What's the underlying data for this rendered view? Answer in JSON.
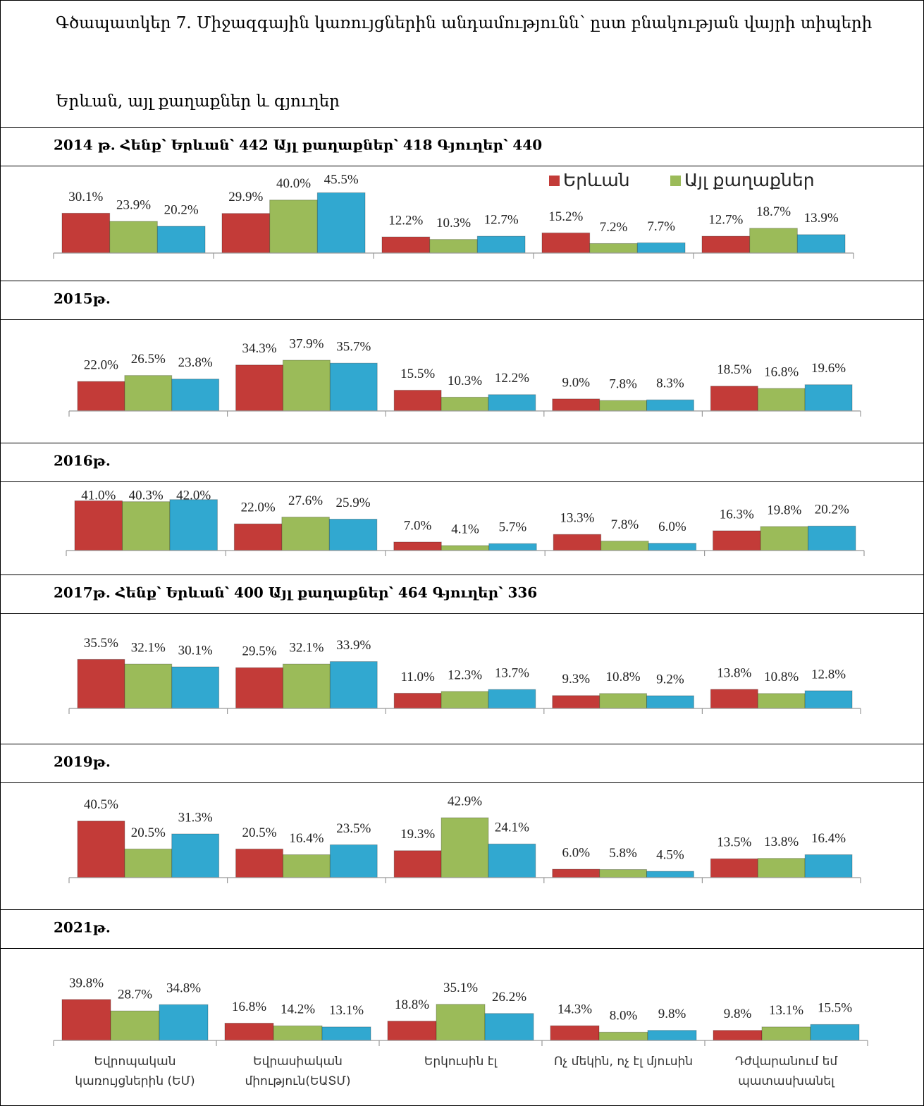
{
  "title": "Գծապատկեր 7. Միջազգային կառույցներին անդամությունն՝ ըստ բնակության վայրի տիպերի",
  "subtitle": "Երևան, այլ քաղաքներ և գյուղեր",
  "chart_data": [
    {
      "type": "bar",
      "title": "2014 թ. Հենք՝ Երևան՝ 442  Այլ քաղաքներ՝ 418  Գյուղեր՝ 440",
      "ylim": [
        0,
        50
      ],
      "legend": "upper right",
      "series": [
        {
          "name": "Երևան",
          "color": "#c33b38",
          "values": [
            30.1,
            29.9,
            12.2,
            15.2,
            12.7
          ],
          "value_labels": [
            "30.1%",
            "29.9%",
            "12.2%",
            "15.2%",
            "12.7%"
          ]
        },
        {
          "name": "Այլ քաղաքներ",
          "color": "#9bbb59",
          "values": [
            23.9,
            40.0,
            10.3,
            7.2,
            18.7
          ],
          "value_labels": [
            "23.9%",
            "40.0%",
            "10.3%",
            "7.2%",
            "18.7%"
          ]
        },
        {
          "color": "#31a8d0",
          "values": [
            20.2,
            45.5,
            12.7,
            7.7,
            13.9
          ],
          "value_labels": [
            "20.2%",
            "45.5%",
            "12.7%",
            "7.7%",
            "13.9%"
          ]
        }
      ]
    },
    {
      "type": "bar",
      "title": "2015թ.",
      "ylim": [
        0,
        50
      ],
      "series": [
        {
          "color": "#c33b38",
          "values": [
            22.0,
            34.3,
            15.5,
            9.0,
            18.5
          ],
          "value_labels": [
            "22.0%",
            "34.3%",
            "15.5%",
            "9.0%",
            "18.5%"
          ]
        },
        {
          "color": "#9bbb59",
          "values": [
            26.5,
            37.9,
            10.3,
            7.8,
            16.8
          ],
          "value_labels": [
            "26.5%",
            "37.9%",
            "10.3%",
            "7.8%",
            "16.8%"
          ]
        },
        {
          "color": "#31a8d0",
          "values": [
            23.8,
            35.7,
            12.2,
            8.3,
            19.6
          ],
          "value_labels": [
            "23.8%",
            "35.7%",
            "12.2%",
            "8.3%",
            "19.6%"
          ]
        }
      ]
    },
    {
      "type": "bar",
      "title": "2016թ.",
      "ylim": [
        0,
        50
      ],
      "series": [
        {
          "color": "#c33b38",
          "values": [
            41.0,
            22.0,
            7.0,
            13.3,
            16.3
          ],
          "value_labels": [
            "41.0%",
            "22.0%",
            "7.0%",
            "13.3%",
            "16.3%"
          ]
        },
        {
          "color": "#9bbb59",
          "values": [
            40.3,
            27.6,
            4.1,
            7.8,
            19.8
          ],
          "value_labels": [
            "40.3%",
            "27.6%",
            "4.1%",
            "7.8%",
            "19.8%"
          ]
        },
        {
          "color": "#31a8d0",
          "values": [
            42.0,
            25.9,
            5.7,
            6.0,
            20.2
          ],
          "value_labels": [
            "42.0%",
            "25.9%",
            "5.7%",
            "6.0%",
            "20.2%"
          ]
        }
      ]
    },
    {
      "type": "bar",
      "title": "2017թ. Հենք՝ Երևան՝ 400  Այլ քաղաքներ՝ 464  Գյուղեր՝ 336",
      "ylim": [
        0,
        50
      ],
      "series": [
        {
          "color": "#c33b38",
          "values": [
            35.5,
            29.5,
            11.0,
            9.3,
            13.8
          ],
          "value_labels": [
            "35.5%",
            "29.5%",
            "11.0%",
            "9.3%",
            "13.8%"
          ]
        },
        {
          "color": "#9bbb59",
          "values": [
            32.1,
            32.1,
            12.3,
            10.8,
            10.8
          ],
          "value_labels": [
            "32.1%",
            "32.1%",
            "12.3%",
            "10.8%",
            "10.8%"
          ]
        },
        {
          "color": "#31a8d0",
          "values": [
            30.1,
            33.9,
            13.7,
            9.2,
            12.8
          ],
          "value_labels": [
            "30.1%",
            "33.9%",
            "13.7%",
            "9.2%",
            "12.8%"
          ]
        }
      ]
    },
    {
      "type": "bar",
      "title": "2019թ.",
      "ylim": [
        0,
        50
      ],
      "series": [
        {
          "color": "#c33b38",
          "values": [
            40.5,
            20.5,
            19.3,
            6.0,
            13.5
          ],
          "value_labels": [
            "40.5%",
            "20.5%",
            "19.3%",
            "6.0%",
            "13.5%"
          ]
        },
        {
          "color": "#9bbb59",
          "values": [
            20.5,
            16.4,
            42.9,
            5.8,
            13.8
          ],
          "value_labels": [
            "20.5%",
            "16.4%",
            "42.9%",
            "5.8%",
            "13.8%"
          ]
        },
        {
          "color": "#31a8d0",
          "values": [
            31.3,
            23.5,
            24.1,
            4.5,
            16.4
          ],
          "value_labels": [
            "31.3%",
            "23.5%",
            "24.1%",
            "4.5%",
            "16.4%"
          ]
        }
      ]
    },
    {
      "type": "bar",
      "title": "2021թ.",
      "ylim": [
        0,
        50
      ],
      "categories": [
        "Եվրոպական\nկառույցներին (ԵՄ)",
        "Եվրասիական\nմիություն(ԵԱՏՄ)",
        "Երկուսին էլ",
        "Ոչ մեկին, ոչ էլ մյուսին",
        "Դժվարանում եմ\nպատասխանել"
      ],
      "series": [
        {
          "color": "#c33b38",
          "values": [
            39.8,
            16.8,
            18.8,
            14.3,
            9.8
          ],
          "value_labels": [
            "39.8%",
            "16.8%",
            "18.8%",
            "14.3%",
            "9.8%"
          ]
        },
        {
          "color": "#9bbb59",
          "values": [
            28.7,
            14.2,
            35.1,
            8.0,
            13.1
          ],
          "value_labels": [
            "28.7%",
            "14.2%",
            "35.1%",
            "8.0%",
            "13.1%"
          ]
        },
        {
          "color": "#31a8d0",
          "values": [
            34.8,
            13.1,
            26.2,
            9.8,
            15.5
          ],
          "value_labels": [
            "34.8%",
            "13.1%",
            "26.2%",
            "9.8%",
            "15.5%"
          ]
        }
      ]
    }
  ]
}
